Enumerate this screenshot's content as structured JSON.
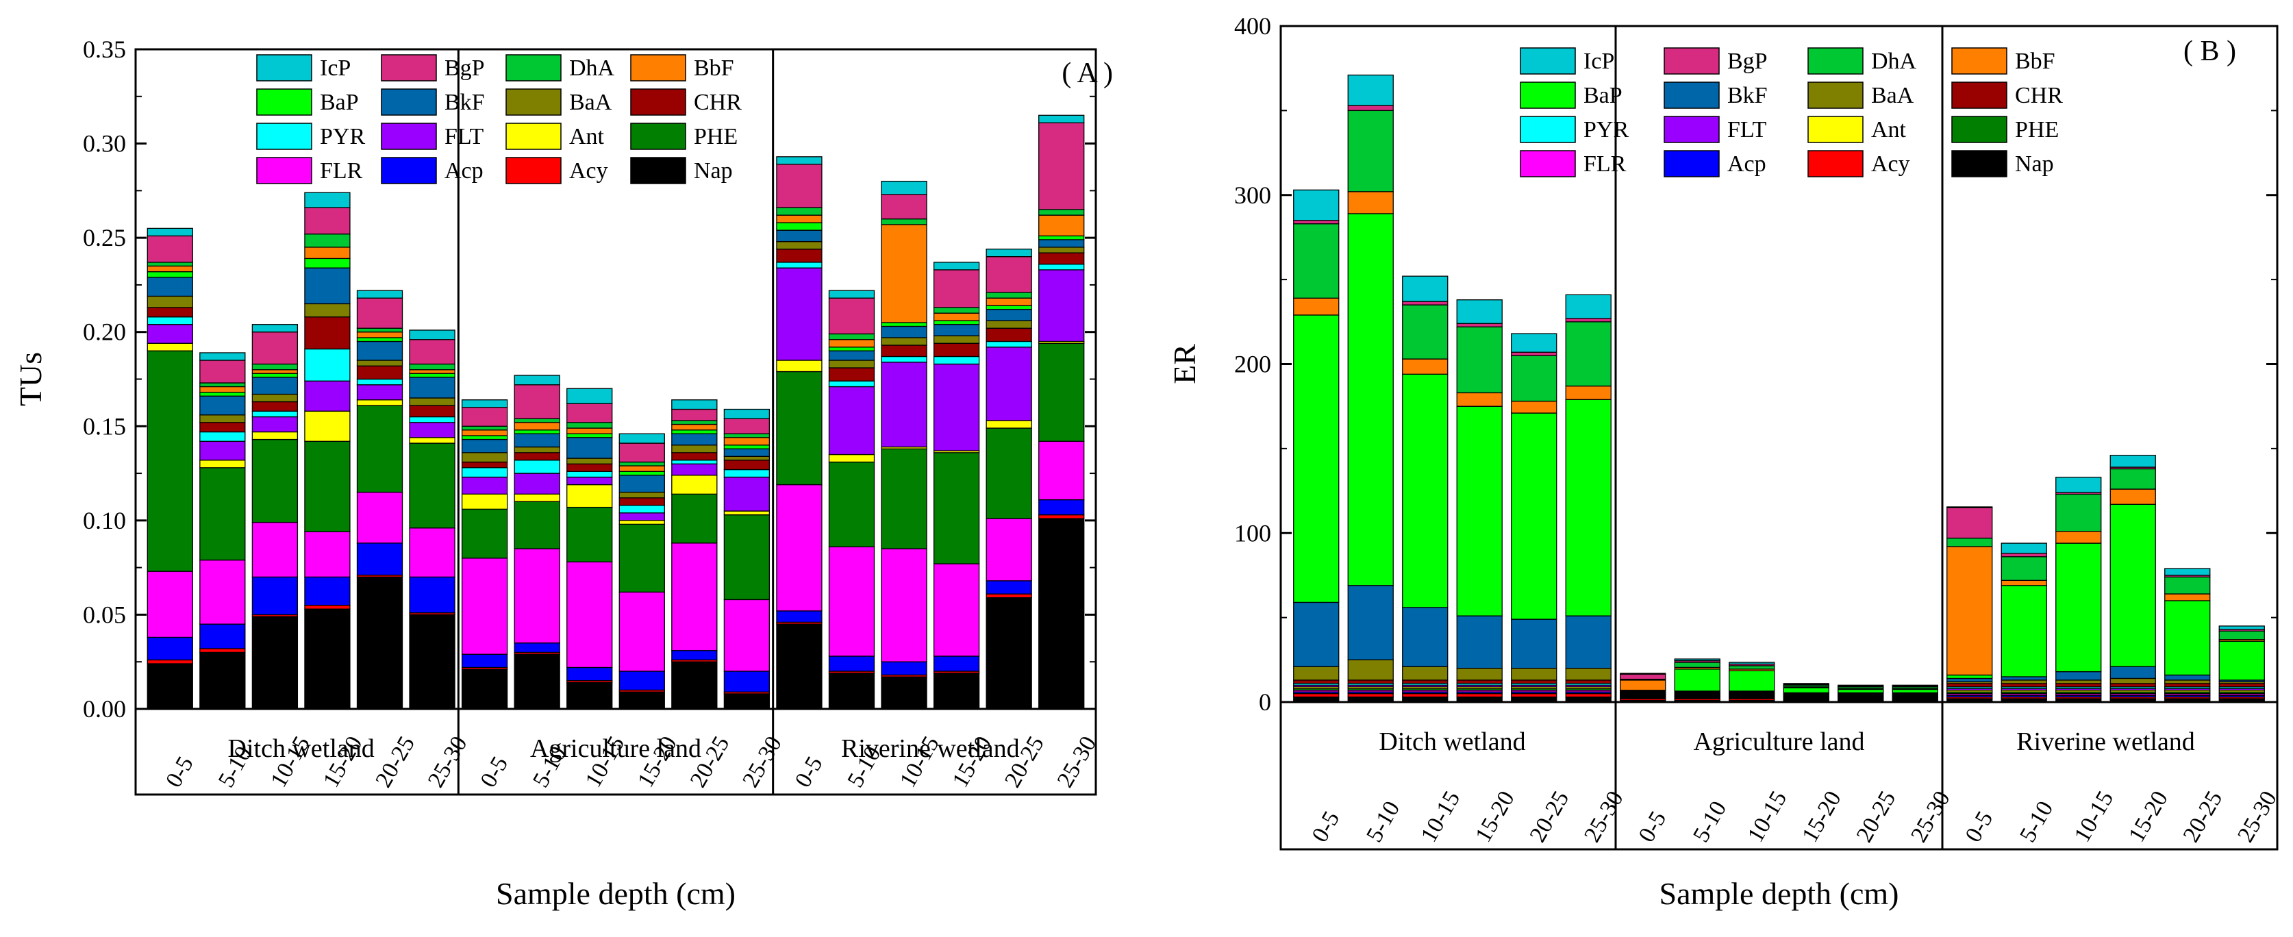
{
  "figure": {
    "legend_series": [
      "IcP",
      "BgP",
      "DhA",
      "BbF",
      "BaP",
      "BkF",
      "BaA",
      "CHR",
      "PYR",
      "FLT",
      "Ant",
      "PHE",
      "FLR",
      "Acp",
      "Acy",
      "Nap"
    ],
    "colors": {
      "Nap": "#000000",
      "Acy": "#ff0000",
      "Acp": "#0000ff",
      "FLR": "#ff00ff",
      "PHE": "#007f00",
      "Ant": "#ffff00",
      "FLT": "#9900ff",
      "PYR": "#00ffff",
      "CHR": "#990000",
      "BaA": "#808000",
      "BkF": "#0066aa",
      "BaP": "#00ff00",
      "BbF": "#ff8000",
      "DhA": "#00c832",
      "BgP": "#d62b80",
      "IcP": "#00c8d2"
    }
  },
  "chart_data": [
    {
      "type": "bar",
      "stacked": true,
      "panel_label": "( A )",
      "title": "",
      "xlabel": "Sample depth (cm)",
      "ylabel": "TUs",
      "ylim": [
        0,
        0.35
      ],
      "yticks": [
        0.0,
        0.05,
        0.1,
        0.15,
        0.2,
        0.25,
        0.3,
        0.35
      ],
      "ytick_labels": [
        "0.00",
        "0.05",
        "0.10",
        "0.15",
        "0.20",
        "0.25",
        "0.30",
        "0.35"
      ],
      "groups": [
        "Ditch wetland",
        "Agriculture land",
        "Riverine wetland"
      ],
      "categories": [
        "0-5",
        "5-10",
        "10-15",
        "15-20",
        "20-25",
        "25-30",
        "0-5",
        "5-10",
        "10-15",
        "15-20",
        "20-25",
        "25-30",
        "0-5",
        "5-10",
        "10-15",
        "15-20",
        "20-25",
        "25-30"
      ],
      "series": [
        {
          "name": "Nap",
          "values": [
            0.024,
            0.03,
            0.049,
            0.053,
            0.07,
            0.05,
            0.021,
            0.029,
            0.014,
            0.009,
            0.025,
            0.008,
            0.045,
            0.019,
            0.017,
            0.019,
            0.059,
            0.101
          ]
        },
        {
          "name": "Acy",
          "values": [
            0.002,
            0.002,
            0.001,
            0.002,
            0.001,
            0.001,
            0.001,
            0.001,
            0.001,
            0.001,
            0.001,
            0.001,
            0.001,
            0.001,
            0.001,
            0.001,
            0.002,
            0.002
          ]
        },
        {
          "name": "Acp",
          "values": [
            0.012,
            0.013,
            0.02,
            0.015,
            0.017,
            0.019,
            0.007,
            0.005,
            0.007,
            0.01,
            0.005,
            0.011,
            0.006,
            0.008,
            0.007,
            0.008,
            0.007,
            0.008
          ]
        },
        {
          "name": "FLR",
          "values": [
            0.035,
            0.034,
            0.029,
            0.024,
            0.027,
            0.026,
            0.051,
            0.05,
            0.056,
            0.042,
            0.057,
            0.038,
            0.067,
            0.058,
            0.06,
            0.049,
            0.033,
            0.031
          ]
        },
        {
          "name": "PHE",
          "values": [
            0.117,
            0.049,
            0.044,
            0.048,
            0.046,
            0.045,
            0.026,
            0.025,
            0.029,
            0.036,
            0.026,
            0.045,
            0.06,
            0.045,
            0.053,
            0.059,
            0.048,
            0.052
          ]
        },
        {
          "name": "Ant",
          "values": [
            0.004,
            0.004,
            0.004,
            0.016,
            0.003,
            0.003,
            0.008,
            0.004,
            0.012,
            0.002,
            0.01,
            0.002,
            0.006,
            0.004,
            0.001,
            0.001,
            0.004,
            0.001
          ]
        },
        {
          "name": "FLT",
          "values": [
            0.01,
            0.01,
            0.008,
            0.016,
            0.008,
            0.008,
            0.009,
            0.011,
            0.004,
            0.004,
            0.006,
            0.018,
            0.049,
            0.036,
            0.045,
            0.046,
            0.039,
            0.038
          ]
        },
        {
          "name": "PYR",
          "values": [
            0.004,
            0.005,
            0.003,
            0.017,
            0.003,
            0.003,
            0.005,
            0.007,
            0.003,
            0.004,
            0.002,
            0.004,
            0.003,
            0.003,
            0.003,
            0.004,
            0.003,
            0.003
          ]
        },
        {
          "name": "CHR",
          "values": [
            0.005,
            0.005,
            0.005,
            0.017,
            0.007,
            0.006,
            0.003,
            0.004,
            0.004,
            0.004,
            0.004,
            0.005,
            0.007,
            0.007,
            0.006,
            0.007,
            0.007,
            0.006
          ]
        },
        {
          "name": "BaA",
          "values": [
            0.006,
            0.004,
            0.004,
            0.007,
            0.003,
            0.004,
            0.005,
            0.003,
            0.003,
            0.003,
            0.004,
            0.002,
            0.004,
            0.004,
            0.004,
            0.004,
            0.004,
            0.003
          ]
        },
        {
          "name": "BkF",
          "values": [
            0.01,
            0.01,
            0.009,
            0.019,
            0.01,
            0.011,
            0.007,
            0.007,
            0.011,
            0.009,
            0.006,
            0.004,
            0.006,
            0.005,
            0.006,
            0.006,
            0.006,
            0.004
          ]
        },
        {
          "name": "BaP",
          "values": [
            0.003,
            0.002,
            0.002,
            0.005,
            0.002,
            0.002,
            0.002,
            0.002,
            0.002,
            0.002,
            0.002,
            0.002,
            0.004,
            0.002,
            0.002,
            0.002,
            0.002,
            0.002
          ]
        },
        {
          "name": "BbF",
          "values": [
            0.003,
            0.003,
            0.002,
            0.006,
            0.003,
            0.002,
            0.003,
            0.004,
            0.003,
            0.003,
            0.003,
            0.004,
            0.004,
            0.004,
            0.052,
            0.004,
            0.004,
            0.011
          ]
        },
        {
          "name": "DhA",
          "values": [
            0.002,
            0.002,
            0.003,
            0.007,
            0.002,
            0.003,
            0.002,
            0.002,
            0.003,
            0.002,
            0.002,
            0.002,
            0.004,
            0.003,
            0.003,
            0.003,
            0.003,
            0.003
          ]
        },
        {
          "name": "BgP",
          "values": [
            0.014,
            0.012,
            0.017,
            0.014,
            0.016,
            0.013,
            0.01,
            0.018,
            0.01,
            0.01,
            0.006,
            0.008,
            0.023,
            0.019,
            0.013,
            0.02,
            0.019,
            0.046
          ]
        },
        {
          "name": "IcP",
          "values": [
            0.004,
            0.004,
            0.004,
            0.008,
            0.004,
            0.005,
            0.004,
            0.005,
            0.008,
            0.005,
            0.005,
            0.005,
            0.004,
            0.004,
            0.007,
            0.004,
            0.004,
            0.004
          ]
        }
      ]
    },
    {
      "type": "bar",
      "stacked": true,
      "panel_label": "( B )",
      "title": "",
      "xlabel": "Sample depth (cm)",
      "ylabel": "ER",
      "ylim": [
        0,
        400
      ],
      "yticks": [
        0,
        100,
        200,
        300,
        400
      ],
      "ytick_labels": [
        "0",
        "100",
        "200",
        "300",
        "400"
      ],
      "groups": [
        "Ditch wetland",
        "Agriculture land",
        "Riverine wetland"
      ],
      "categories": [
        "0-5",
        "5-10",
        "10-15",
        "15-20",
        "20-25",
        "25-30",
        "0-5",
        "5-10",
        "10-15",
        "15-20",
        "20-25",
        "25-30",
        "0-5",
        "5-10",
        "10-15",
        "15-20",
        "20-25",
        "25-30"
      ],
      "series": [
        {
          "name": "Nap",
          "values": [
            3,
            3,
            3,
            3,
            3,
            3,
            1,
            1,
            1,
            0.5,
            0.5,
            0.5,
            2,
            2,
            2,
            2,
            2,
            2
          ]
        },
        {
          "name": "Acy",
          "values": [
            2,
            2,
            2,
            2,
            2,
            2,
            1,
            1,
            1,
            0.5,
            0.5,
            0.5,
            1,
            1,
            1,
            1,
            1,
            1
          ]
        },
        {
          "name": "Acp",
          "values": [
            1,
            1,
            1,
            1,
            1,
            1,
            0.5,
            0.5,
            0.5,
            0.5,
            0.5,
            0.5,
            1,
            1,
            1,
            1,
            1,
            1
          ]
        },
        {
          "name": "FLR",
          "values": [
            1,
            1,
            1,
            1,
            1,
            1,
            0.5,
            0.5,
            0.5,
            0.5,
            0.5,
            0.5,
            1,
            1,
            1,
            1,
            1,
            1
          ]
        },
        {
          "name": "PHE",
          "values": [
            1,
            1,
            1,
            1,
            1,
            1,
            0.5,
            0.5,
            0.5,
            0.5,
            0.5,
            0.5,
            1,
            1,
            1,
            1,
            1,
            1
          ]
        },
        {
          "name": "Ant",
          "values": [
            1,
            1,
            1,
            1,
            1,
            1,
            0.5,
            0.5,
            0.5,
            0.5,
            0.5,
            0.5,
            1,
            1,
            1,
            1,
            1,
            1
          ]
        },
        {
          "name": "FLT",
          "values": [
            1,
            1,
            1,
            1,
            1,
            1,
            0.5,
            0.5,
            0.5,
            0.5,
            0.5,
            0.5,
            1,
            1,
            1,
            1,
            1,
            1
          ]
        },
        {
          "name": "PYR",
          "values": [
            1,
            1,
            1,
            1,
            1,
            1,
            0.5,
            0.5,
            0.5,
            0.5,
            0.5,
            0.5,
            1,
            1,
            1,
            1,
            1,
            1
          ]
        },
        {
          "name": "CHR",
          "values": [
            2,
            2,
            2,
            2,
            2,
            2,
            0.5,
            0.5,
            0.5,
            0.5,
            0.5,
            0.5,
            2,
            2,
            2,
            2,
            2,
            2
          ]
        },
        {
          "name": "BaA",
          "values": [
            8,
            12,
            8,
            7,
            7,
            7,
            0.5,
            0.5,
            0.5,
            0.5,
            0.5,
            0.5,
            1,
            2,
            2,
            3,
            2,
            1
          ]
        },
        {
          "name": "BkF",
          "values": [
            38,
            44,
            35,
            31,
            29,
            31,
            0.5,
            0.5,
            0.5,
            0.5,
            0.5,
            0.5,
            2,
            2,
            5,
            7,
            3,
            1
          ]
        },
        {
          "name": "BaP",
          "values": [
            170,
            220,
            138,
            124,
            122,
            128,
            0.5,
            13,
            12,
            3,
            2,
            2,
            2,
            54,
            76,
            96,
            44,
            23
          ]
        },
        {
          "name": "BbF",
          "values": [
            10,
            13,
            9,
            8,
            7,
            8,
            6,
            1,
            1,
            0.5,
            0.5,
            0.5,
            76,
            3,
            7,
            9,
            4,
            1
          ]
        },
        {
          "name": "DhA",
          "values": [
            44,
            48,
            32,
            39,
            27,
            38,
            0.5,
            3,
            2,
            1,
            1,
            1,
            5,
            14,
            22,
            12,
            10,
            5
          ]
        },
        {
          "name": "BgP",
          "values": [
            2,
            3,
            2,
            2,
            2,
            2,
            3,
            1,
            1,
            0.5,
            0.5,
            0.5,
            18,
            2,
            1,
            1,
            1,
            1
          ]
        },
        {
          "name": "IcP",
          "values": [
            18,
            18,
            15,
            14,
            11,
            14,
            0.5,
            1,
            1,
            0.5,
            0.5,
            0.5,
            0.5,
            6,
            9,
            7,
            4,
            2
          ]
        }
      ]
    }
  ]
}
